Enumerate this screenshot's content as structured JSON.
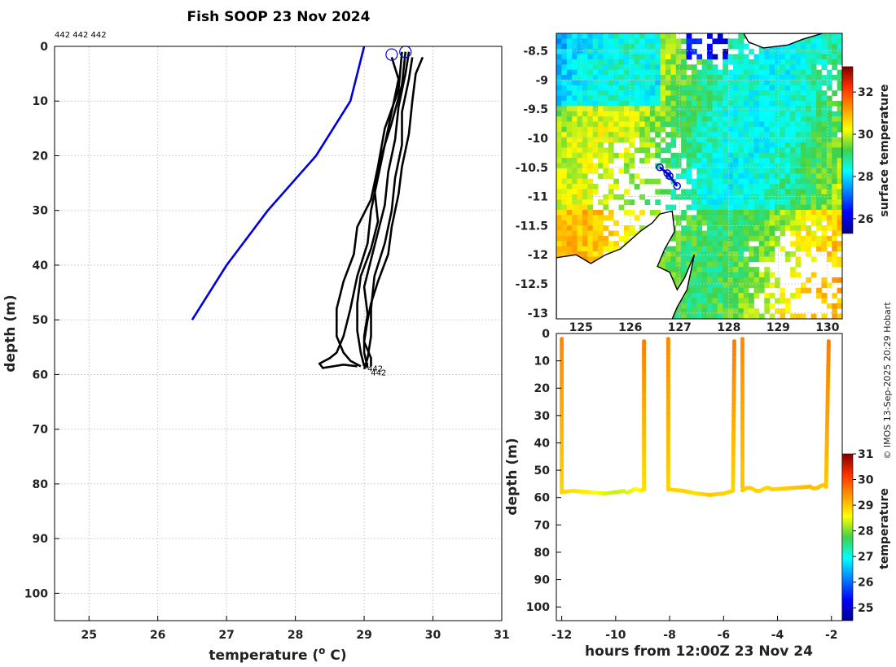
{
  "page": {
    "title": "Fish SOOP 23 Nov 2024",
    "profile_ids": "442 442 442",
    "credit": "© IMOS 13-Sep-2025 20:29 Hobart"
  },
  "chart_data": [
    {
      "id": "profile",
      "type": "line",
      "title": "Fish SOOP 23 Nov 2024",
      "xlabel": "temperature (o C)",
      "xlabel_main": "temperature (",
      "xlabel_sup": "o",
      "xlabel_tail": " C)",
      "ylabel": "depth (m)",
      "xlim": [
        24.5,
        31
      ],
      "ylim": [
        0,
        105
      ],
      "y_inverted": true,
      "xticks": [
        25,
        26,
        27,
        28,
        29,
        30,
        31
      ],
      "yticks": [
        0,
        10,
        20,
        30,
        40,
        50,
        60,
        70,
        80,
        90,
        100
      ],
      "grid": true,
      "series": [
        {
          "name": "climatology",
          "color": "#0000dd",
          "points": [
            [
              29.0,
              0
            ],
            [
              28.8,
              10
            ],
            [
              28.3,
              20
            ],
            [
              27.6,
              30
            ],
            [
              27.0,
              40
            ],
            [
              26.5,
              50
            ]
          ]
        },
        {
          "name": "cast-1",
          "color": "#000000",
          "points": [
            [
              29.4,
              2
            ],
            [
              29.5,
              6
            ],
            [
              29.4,
              12
            ],
            [
              29.3,
              18
            ],
            [
              29.2,
              24
            ],
            [
              29.1,
              30
            ],
            [
              29.05,
              36
            ],
            [
              28.9,
              42
            ],
            [
              28.8,
              48
            ],
            [
              28.7,
              53
            ],
            [
              28.6,
              56
            ],
            [
              28.5,
              57
            ],
            [
              28.35,
              58
            ],
            [
              28.4,
              58.8
            ],
            [
              28.7,
              58.2
            ],
            [
              28.9,
              58.5
            ]
          ]
        },
        {
          "name": "cast-2",
          "color": "#000000",
          "points": [
            [
              29.55,
              1
            ],
            [
              29.5,
              8
            ],
            [
              29.3,
              15
            ],
            [
              29.2,
              22
            ],
            [
              29.1,
              28
            ],
            [
              28.9,
              33
            ],
            [
              28.85,
              38
            ],
            [
              28.7,
              43
            ],
            [
              28.6,
              48
            ],
            [
              28.6,
              53
            ],
            [
              28.7,
              56
            ],
            [
              28.8,
              57.5
            ],
            [
              28.95,
              58.5
            ]
          ]
        },
        {
          "name": "cast-3",
          "color": "#000000",
          "points": [
            [
              29.6,
              1
            ],
            [
              29.55,
              7
            ],
            [
              29.4,
              14
            ],
            [
              29.25,
              20
            ],
            [
              29.15,
              26
            ],
            [
              29.2,
              32
            ],
            [
              29.1,
              37
            ],
            [
              28.95,
              42
            ],
            [
              28.9,
              47
            ],
            [
              28.9,
              52
            ],
            [
              28.95,
              56
            ],
            [
              29.0,
              58.5
            ]
          ]
        },
        {
          "name": "cast-4",
          "color": "#000000",
          "points": [
            [
              29.65,
              1
            ],
            [
              29.6,
              5
            ],
            [
              29.5,
              11
            ],
            [
              29.45,
              17
            ],
            [
              29.35,
              23
            ],
            [
              29.3,
              29
            ],
            [
              29.2,
              34
            ],
            [
              29.1,
              39
            ],
            [
              29.0,
              44
            ],
            [
              29.05,
              49
            ],
            [
              29.0,
              53
            ],
            [
              29.0,
              56
            ],
            [
              29.05,
              58.7
            ]
          ]
        },
        {
          "name": "cast-5",
          "color": "#000000",
          "points": [
            [
              29.7,
              2
            ],
            [
              29.65,
              6
            ],
            [
              29.55,
              12
            ],
            [
              29.55,
              18
            ],
            [
              29.45,
              24
            ],
            [
              29.4,
              30
            ],
            [
              29.3,
              36
            ],
            [
              29.15,
              42
            ],
            [
              29.1,
              48
            ],
            [
              29.1,
              53
            ],
            [
              29.05,
              57
            ],
            [
              29.0,
              59
            ]
          ]
        },
        {
          "name": "cast-6",
          "color": "#000000",
          "points": [
            [
              29.85,
              2
            ],
            [
              29.75,
              5
            ],
            [
              29.7,
              10
            ],
            [
              29.65,
              16
            ],
            [
              29.55,
              22
            ],
            [
              29.5,
              27
            ],
            [
              29.4,
              33
            ],
            [
              29.35,
              38
            ],
            [
              29.2,
              43
            ],
            [
              29.1,
              47
            ],
            [
              29.05,
              50
            ],
            [
              29.0,
              54
            ],
            [
              29.1,
              57
            ],
            [
              29.1,
              58.5
            ]
          ]
        }
      ],
      "markers": [
        {
          "name": "cast-start-a",
          "x": 29.4,
          "y": 1.5,
          "color": "#0000dd"
        },
        {
          "name": "cast-start-b",
          "x": 29.6,
          "y": 1.0,
          "color": "#0000dd"
        }
      ],
      "labels": [
        {
          "x": 29.0,
          "y": 58.8,
          "text": "442"
        },
        {
          "x": 29.05,
          "y": 59.6,
          "text": "442"
        },
        {
          "x": 28.95,
          "y": 58.2,
          "text": "2"
        }
      ]
    },
    {
      "id": "map",
      "type": "heatmap",
      "xlim": [
        124.5,
        130.3
      ],
      "ylim": [
        -13.1,
        -8.2
      ],
      "xticks": [
        125,
        126,
        127,
        128,
        129,
        130
      ],
      "xtick_labels": [
        "125",
        "126",
        "127",
        "128",
        "129",
        "130"
      ],
      "yticks": [
        -8.5,
        -9,
        -9.5,
        -10,
        -10.5,
        -11,
        -11.5,
        -12,
        -12.5,
        -13
      ],
      "ytick_labels": [
        "-8.5",
        "-9",
        "-9.5",
        "-10",
        "-10.5",
        "-11",
        "-11.5",
        "-12",
        "-12.5",
        "-13"
      ],
      "colorbar": {
        "label": "surface temperature",
        "clim": [
          25.3,
          33.2
        ],
        "ticks": [
          26,
          28,
          30,
          32
        ]
      },
      "track": {
        "color": "#0000dd",
        "points": [
          [
            126.6,
            -10.5
          ],
          [
            126.75,
            -10.6
          ],
          [
            126.8,
            -10.65
          ],
          [
            126.95,
            -10.82
          ]
        ]
      },
      "coast": {
        "color": "#000000"
      }
    },
    {
      "id": "timeseries",
      "type": "scatter",
      "xlabel": "hours from 12:00Z 23 Nov 24",
      "ylabel": "depth (m)",
      "xlim": [
        -12.2,
        -1.6
      ],
      "ylim": [
        0,
        105
      ],
      "y_inverted": true,
      "xticks": [
        -12,
        -10,
        -8,
        -6,
        -4,
        -2
      ],
      "yticks": [
        0,
        10,
        20,
        30,
        40,
        50,
        60,
        70,
        80,
        90,
        100
      ],
      "colorbar": {
        "label": "temperature",
        "clim": [
          24.5,
          31
        ],
        "ticks": [
          25,
          26,
          27,
          28,
          29,
          30,
          31
        ]
      },
      "series": [
        {
          "name": "dive-1",
          "points": [
            [
              -12.0,
              2
            ],
            [
              -12.0,
              58
            ],
            [
              -11.6,
              57.5
            ],
            [
              -11.0,
              58
            ],
            [
              -10.4,
              58.5
            ],
            [
              -10.0,
              58
            ],
            [
              -9.6,
              57.5
            ],
            [
              -9.1,
              57.5
            ],
            [
              -8.95,
              57
            ],
            [
              -8.95,
              2
            ]
          ],
          "temps": [
            29.5,
            28.9,
            28.8,
            28.7,
            28.4,
            28.3,
            28.4,
            28.6,
            28.8,
            29.6
          ]
        },
        {
          "name": "dive-2",
          "points": [
            [
              -8.05,
              2
            ],
            [
              -8.05,
              57
            ],
            [
              -7.5,
              57.5
            ],
            [
              -7.0,
              58.5
            ],
            [
              -6.5,
              59
            ],
            [
              -6.0,
              58.5
            ],
            [
              -5.65,
              57.5
            ],
            [
              -5.6,
              2
            ]
          ],
          "temps": [
            29.5,
            28.9,
            28.9,
            28.8,
            29.0,
            28.9,
            28.9,
            29.6
          ]
        },
        {
          "name": "dive-3",
          "points": [
            [
              -5.3,
              2
            ],
            [
              -5.3,
              57
            ],
            [
              -4.8,
              57
            ],
            [
              -4.2,
              57
            ],
            [
              -3.5,
              56.5
            ],
            [
              -2.8,
              56
            ],
            [
              -2.2,
              56
            ],
            [
              -2.1,
              2
            ]
          ],
          "temps": [
            29.5,
            29.0,
            28.9,
            28.9,
            29.0,
            29.1,
            29.0,
            29.6
          ]
        }
      ]
    }
  ]
}
